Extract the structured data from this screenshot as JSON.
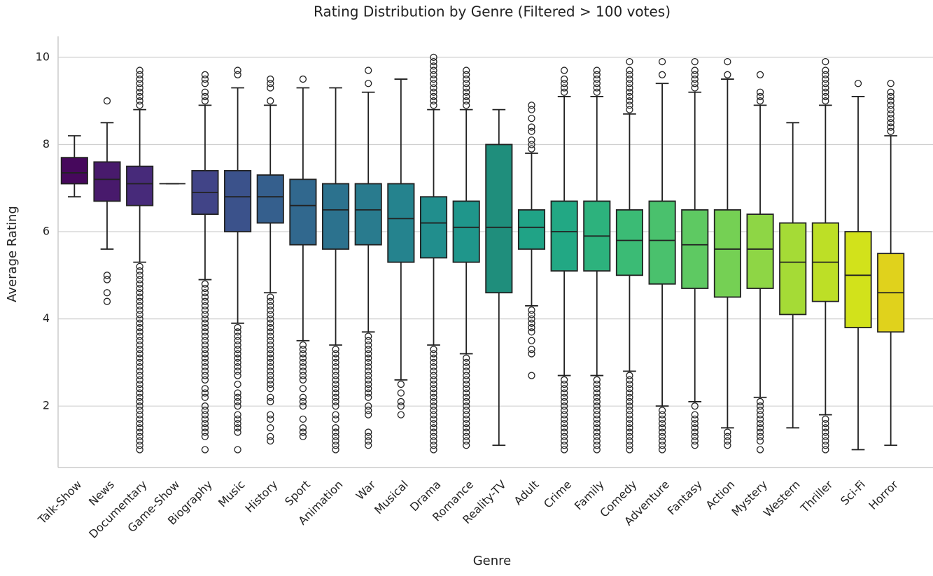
{
  "chart_data": {
    "type": "box",
    "title": "Rating Distribution by Genre (Filtered > 100 votes)",
    "xlabel": "Genre",
    "ylabel": "Average Rating",
    "ylim": [
      0.59,
      10.48
    ],
    "yticks": [
      2,
      4,
      6,
      8,
      10
    ],
    "grid": true,
    "categories": [
      "Talk-Show",
      "News",
      "Documentary",
      "Game-Show",
      "Biography",
      "Music",
      "History",
      "Sport",
      "Animation",
      "War",
      "Musical",
      "Drama",
      "Romance",
      "Reality-TV",
      "Adult",
      "Crime",
      "Family",
      "Comedy",
      "Adventure",
      "Fantasy",
      "Action",
      "Mystery",
      "Western",
      "Thriller",
      "Sci-Fi",
      "Horror"
    ],
    "boxes": [
      {
        "color": "#46085c",
        "whisker_low": 6.8,
        "q1": 7.1,
        "median": 7.35,
        "q3": 7.7,
        "whisker_high": 8.2,
        "outliers": []
      },
      {
        "color": "#481a6c",
        "whisker_low": 5.6,
        "q1": 6.7,
        "median": 7.2,
        "q3": 7.6,
        "whisker_high": 8.5,
        "outliers": [
          9.0,
          5.0,
          4.9,
          4.6,
          4.4
        ]
      },
      {
        "color": "#472a7a",
        "whisker_low": 5.3,
        "q1": 6.6,
        "median": 7.1,
        "q3": 7.5,
        "whisker_high": 8.8,
        "outliers": [
          8.9,
          9.0,
          9.1,
          9.2,
          9.3,
          9.4,
          9.5,
          9.6,
          9.7,
          1.0,
          1.1,
          1.2,
          1.3,
          1.4,
          1.5,
          1.6,
          1.7,
          1.8,
          1.9,
          2.0,
          2.1,
          2.2,
          2.3,
          2.4,
          2.5,
          2.6,
          2.7,
          2.8,
          2.9,
          3.0,
          3.1,
          3.2,
          3.3,
          3.4,
          3.5,
          3.6,
          3.7,
          3.8,
          3.9,
          4.0,
          4.1,
          4.2,
          4.3,
          4.4,
          4.5,
          4.6,
          4.7,
          4.8,
          4.9,
          5.0,
          5.1,
          5.2
        ]
      },
      {
        "color": "#443983",
        "whisker_low": 7.1,
        "q1": 7.1,
        "median": 7.1,
        "q3": 7.1,
        "whisker_high": 7.1,
        "outliers": []
      },
      {
        "color": "#414487",
        "whisker_low": 4.9,
        "q1": 6.4,
        "median": 6.9,
        "q3": 7.4,
        "whisker_high": 8.9,
        "outliers": [
          9.0,
          9.1,
          9.2,
          9.4,
          9.5,
          9.6,
          1.0,
          1.3,
          1.4,
          1.5,
          1.6,
          1.7,
          1.8,
          1.9,
          2.0,
          2.2,
          2.3,
          2.4,
          2.6,
          2.7,
          2.8,
          2.9,
          3.0,
          3.1,
          3.2,
          3.3,
          3.4,
          3.5,
          3.6,
          3.7,
          3.8,
          3.9,
          4.0,
          4.1,
          4.2,
          4.3,
          4.4,
          4.5,
          4.6,
          4.7,
          4.8
        ]
      },
      {
        "color": "#3b528b",
        "whisker_low": 3.9,
        "q1": 6.0,
        "median": 6.8,
        "q3": 7.4,
        "whisker_high": 9.3,
        "outliers": [
          9.6,
          9.7,
          1.0,
          1.4,
          1.5,
          1.6,
          1.7,
          1.8,
          2.0,
          2.1,
          2.2,
          2.3,
          2.5,
          2.7,
          2.8,
          2.9,
          3.0,
          3.1,
          3.2,
          3.3,
          3.4,
          3.5,
          3.6,
          3.7,
          3.8
        ]
      },
      {
        "color": "#355f8d",
        "whisker_low": 4.6,
        "q1": 6.2,
        "median": 6.8,
        "q3": 7.3,
        "whisker_high": 8.9,
        "outliers": [
          9.0,
          9.3,
          9.4,
          9.5,
          1.2,
          1.3,
          1.5,
          1.7,
          1.8,
          2.1,
          2.2,
          2.4,
          2.5,
          2.6,
          2.7,
          2.8,
          2.9,
          3.0,
          3.1,
          3.2,
          3.3,
          3.4,
          3.5,
          3.6,
          3.7,
          3.8,
          3.9,
          4.0,
          4.1,
          4.2,
          4.3,
          4.4,
          4.5
        ]
      },
      {
        "color": "#31688e",
        "whisker_low": 3.5,
        "q1": 5.7,
        "median": 6.6,
        "q3": 7.2,
        "whisker_high": 9.3,
        "outliers": [
          9.5,
          1.3,
          1.4,
          1.5,
          1.7,
          2.0,
          2.1,
          2.2,
          2.4,
          2.6,
          2.7,
          2.8,
          2.9,
          3.0,
          3.1,
          3.2,
          3.3,
          3.4
        ]
      },
      {
        "color": "#2c728e",
        "whisker_low": 3.4,
        "q1": 5.6,
        "median": 6.5,
        "q3": 7.1,
        "whisker_high": 9.3,
        "outliers": [
          1.0,
          1.1,
          1.2,
          1.3,
          1.4,
          1.5,
          1.7,
          1.8,
          2.0,
          2.1,
          2.2,
          2.3,
          2.4,
          2.5,
          2.6,
          2.7,
          2.8,
          2.9,
          3.0,
          3.1,
          3.2,
          3.3
        ]
      },
      {
        "color": "#297b8e",
        "whisker_low": 3.7,
        "q1": 5.7,
        "median": 6.5,
        "q3": 7.1,
        "whisker_high": 9.2,
        "outliers": [
          9.4,
          9.7,
          1.1,
          1.2,
          1.3,
          1.4,
          1.8,
          1.9,
          2.0,
          2.2,
          2.3,
          2.4,
          2.5,
          2.6,
          2.7,
          2.8,
          2.9,
          3.0,
          3.1,
          3.2,
          3.3,
          3.4,
          3.5,
          3.6
        ]
      },
      {
        "color": "#25838e",
        "whisker_low": 2.6,
        "q1": 5.3,
        "median": 6.3,
        "q3": 7.1,
        "whisker_high": 9.5,
        "outliers": [
          1.8,
          2.0,
          2.1,
          2.3,
          2.5
        ]
      },
      {
        "color": "#218e8d",
        "whisker_low": 3.4,
        "q1": 5.4,
        "median": 6.2,
        "q3": 6.8,
        "whisker_high": 8.8,
        "outliers": [
          8.9,
          9.0,
          9.1,
          9.2,
          9.3,
          9.4,
          9.5,
          9.6,
          9.7,
          9.8,
          9.9,
          10.0,
          1.0,
          1.1,
          1.2,
          1.3,
          1.4,
          1.5,
          1.6,
          1.7,
          1.8,
          1.9,
          2.0,
          2.1,
          2.2,
          2.3,
          2.4,
          2.5,
          2.6,
          2.7,
          2.8,
          2.9,
          3.0,
          3.1,
          3.2,
          3.3
        ]
      },
      {
        "color": "#1f968b",
        "whisker_low": 3.2,
        "q1": 5.3,
        "median": 6.1,
        "q3": 6.7,
        "whisker_high": 8.8,
        "outliers": [
          8.9,
          9.0,
          9.1,
          9.2,
          9.3,
          9.4,
          9.5,
          9.6,
          9.7,
          1.1,
          1.2,
          1.3,
          1.4,
          1.5,
          1.6,
          1.7,
          1.8,
          1.9,
          2.0,
          2.1,
          2.2,
          2.3,
          2.4,
          2.5,
          2.6,
          2.7,
          2.8,
          2.9,
          3.0,
          3.1
        ]
      },
      {
        "color": "#1f8e7c",
        "whisker_low": 1.1,
        "q1": 4.6,
        "median": 6.1,
        "q3": 8.0,
        "whisker_high": 8.8,
        "outliers": []
      },
      {
        "color": "#20a386",
        "whisker_low": 4.3,
        "q1": 5.6,
        "median": 6.1,
        "q3": 6.5,
        "whisker_high": 7.8,
        "outliers": [
          7.9,
          8.0,
          8.1,
          8.3,
          8.4,
          8.6,
          8.8,
          8.9,
          2.7,
          3.2,
          3.3,
          3.5,
          3.7,
          3.8,
          3.9,
          4.0,
          4.1,
          4.2
        ]
      },
      {
        "color": "#22a884",
        "whisker_low": 2.7,
        "q1": 5.1,
        "median": 6.0,
        "q3": 6.7,
        "whisker_high": 9.1,
        "outliers": [
          9.2,
          9.3,
          9.4,
          9.5,
          9.7,
          1.0,
          1.1,
          1.2,
          1.3,
          1.4,
          1.5,
          1.6,
          1.7,
          1.8,
          1.9,
          2.0,
          2.1,
          2.2,
          2.3,
          2.4,
          2.5,
          2.6
        ]
      },
      {
        "color": "#2db27d",
        "whisker_low": 2.7,
        "q1": 5.1,
        "median": 5.9,
        "q3": 6.7,
        "whisker_high": 9.1,
        "outliers": [
          9.2,
          9.3,
          9.4,
          9.5,
          9.6,
          9.7,
          1.0,
          1.1,
          1.2,
          1.3,
          1.4,
          1.5,
          1.6,
          1.7,
          1.8,
          1.9,
          2.0,
          2.1,
          2.2,
          2.3,
          2.4,
          2.5,
          2.6
        ]
      },
      {
        "color": "#3bbb75",
        "whisker_low": 2.8,
        "q1": 5.0,
        "median": 5.8,
        "q3": 6.5,
        "whisker_high": 8.7,
        "outliers": [
          8.8,
          8.9,
          9.0,
          9.1,
          9.2,
          9.3,
          9.4,
          9.5,
          9.6,
          9.7,
          9.9,
          1.0,
          1.1,
          1.2,
          1.3,
          1.4,
          1.5,
          1.6,
          1.7,
          1.8,
          1.9,
          2.0,
          2.1,
          2.2,
          2.3,
          2.4,
          2.5,
          2.6,
          2.7
        ]
      },
      {
        "color": "#4ac16d",
        "whisker_low": 2.0,
        "q1": 4.8,
        "median": 5.8,
        "q3": 6.7,
        "whisker_high": 9.4,
        "outliers": [
          9.6,
          9.9,
          1.0,
          1.1,
          1.2,
          1.3,
          1.4,
          1.5,
          1.6,
          1.7,
          1.8,
          1.9
        ]
      },
      {
        "color": "#5ec962",
        "whisker_low": 2.1,
        "q1": 4.7,
        "median": 5.7,
        "q3": 6.5,
        "whisker_high": 9.2,
        "outliers": [
          9.3,
          9.4,
          9.5,
          9.6,
          9.7,
          9.9,
          1.1,
          1.2,
          1.3,
          1.4,
          1.5,
          1.6,
          1.7,
          1.8,
          2.0
        ]
      },
      {
        "color": "#75d054",
        "whisker_low": 1.5,
        "q1": 4.5,
        "median": 5.6,
        "q3": 6.5,
        "whisker_high": 9.5,
        "outliers": [
          9.6,
          9.9,
          1.1,
          1.2,
          1.3,
          1.4
        ]
      },
      {
        "color": "#8ed645",
        "whisker_low": 2.2,
        "q1": 4.7,
        "median": 5.6,
        "q3": 6.4,
        "whisker_high": 8.9,
        "outliers": [
          9.0,
          9.1,
          9.2,
          9.6,
          1.0,
          1.2,
          1.3,
          1.4,
          1.5,
          1.6,
          1.7,
          1.8,
          1.9,
          2.0,
          2.1
        ]
      },
      {
        "color": "#a5db36",
        "whisker_low": 1.5,
        "q1": 4.1,
        "median": 5.3,
        "q3": 6.2,
        "whisker_high": 8.5,
        "outliers": []
      },
      {
        "color": "#bddf26",
        "whisker_low": 1.8,
        "q1": 4.4,
        "median": 5.3,
        "q3": 6.2,
        "whisker_high": 8.9,
        "outliers": [
          9.0,
          9.1,
          9.2,
          9.3,
          9.4,
          9.5,
          9.6,
          9.7,
          9.9,
          1.0,
          1.1,
          1.2,
          1.3,
          1.4,
          1.5,
          1.6,
          1.7
        ]
      },
      {
        "color": "#d2e21b",
        "whisker_low": 1.0,
        "q1": 3.8,
        "median": 5.0,
        "q3": 6.0,
        "whisker_high": 9.1,
        "outliers": [
          9.4
        ]
      },
      {
        "color": "#e0d21c",
        "whisker_low": 1.1,
        "q1": 3.7,
        "median": 4.6,
        "q3": 5.5,
        "whisker_high": 8.2,
        "outliers": [
          8.3,
          8.4,
          8.5,
          8.6,
          8.7,
          8.8,
          8.9,
          9.0,
          9.1,
          9.2,
          9.4
        ]
      }
    ]
  }
}
